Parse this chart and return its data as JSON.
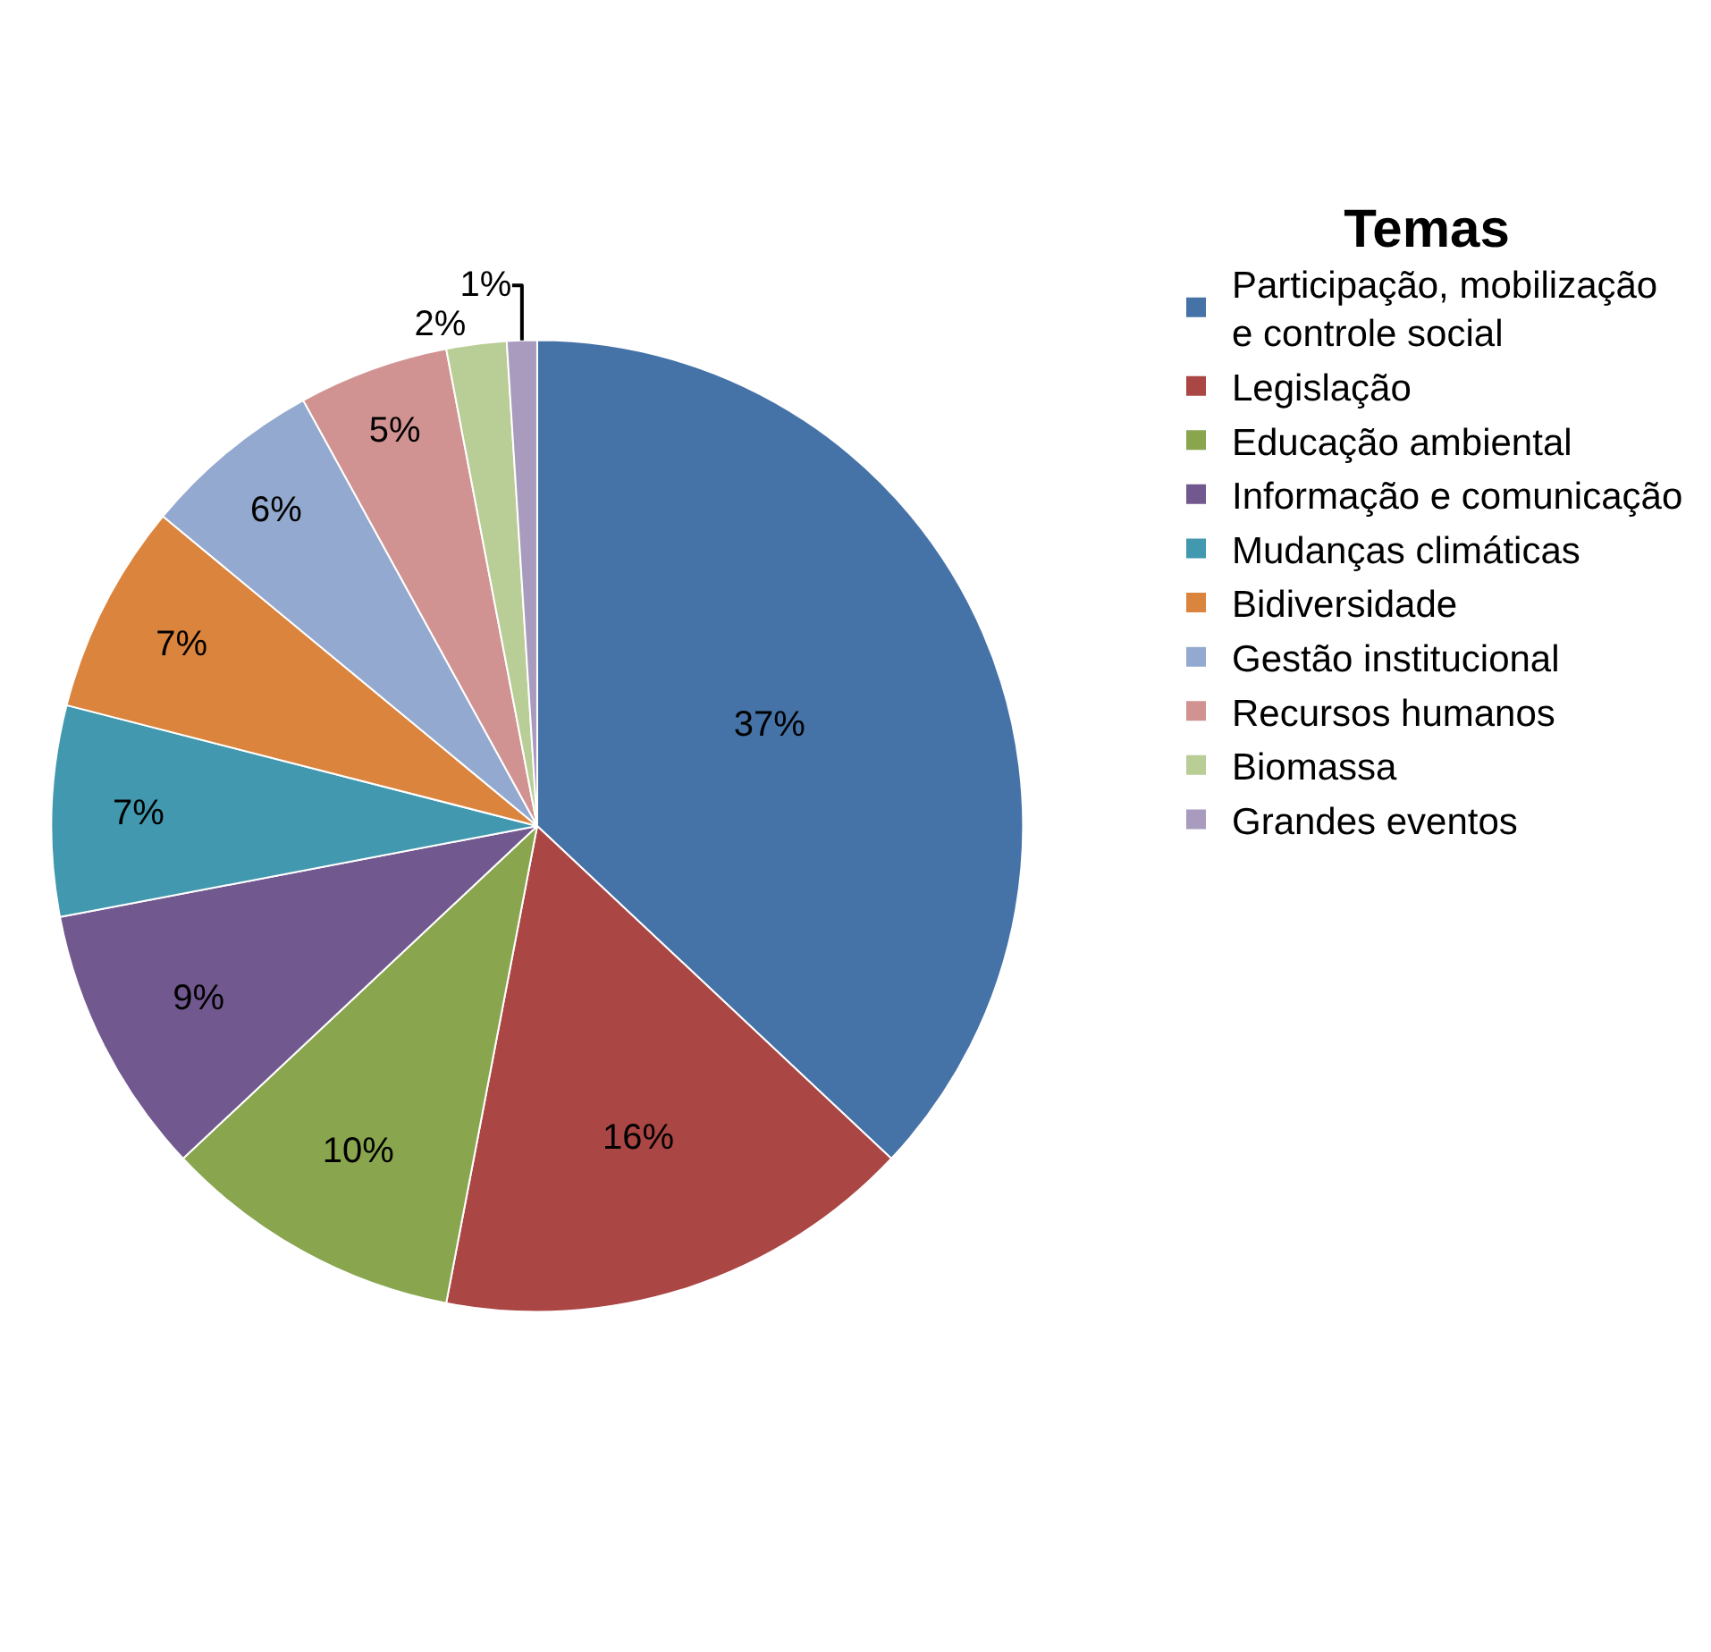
{
  "chart_data": {
    "type": "pie",
    "legend_title": "Temas",
    "legend": "top right",
    "categories": [
      "Participação, mobilização e controle social",
      "Legislação",
      "Educação ambiental",
      "Informação e comunicação",
      "Mudanças climáticas",
      "Bidiversidade",
      "Gestão institucional",
      "Recursos humanos",
      "Biomassa",
      "Grandes eventos"
    ],
    "values": [
      37,
      16,
      10,
      9,
      7,
      7,
      6,
      5,
      2,
      1
    ],
    "value_labels": [
      "37%",
      "16%",
      "10%",
      "9%",
      "7%",
      "7%",
      "6%",
      "5%",
      "2%",
      "1%"
    ],
    "colors": [
      "#4572a7",
      "#aa4643",
      "#89a54e",
      "#71588f",
      "#4198af",
      "#db843d",
      "#93a9cf",
      "#d19392",
      "#b9cd96",
      "#a99bbd"
    ]
  }
}
